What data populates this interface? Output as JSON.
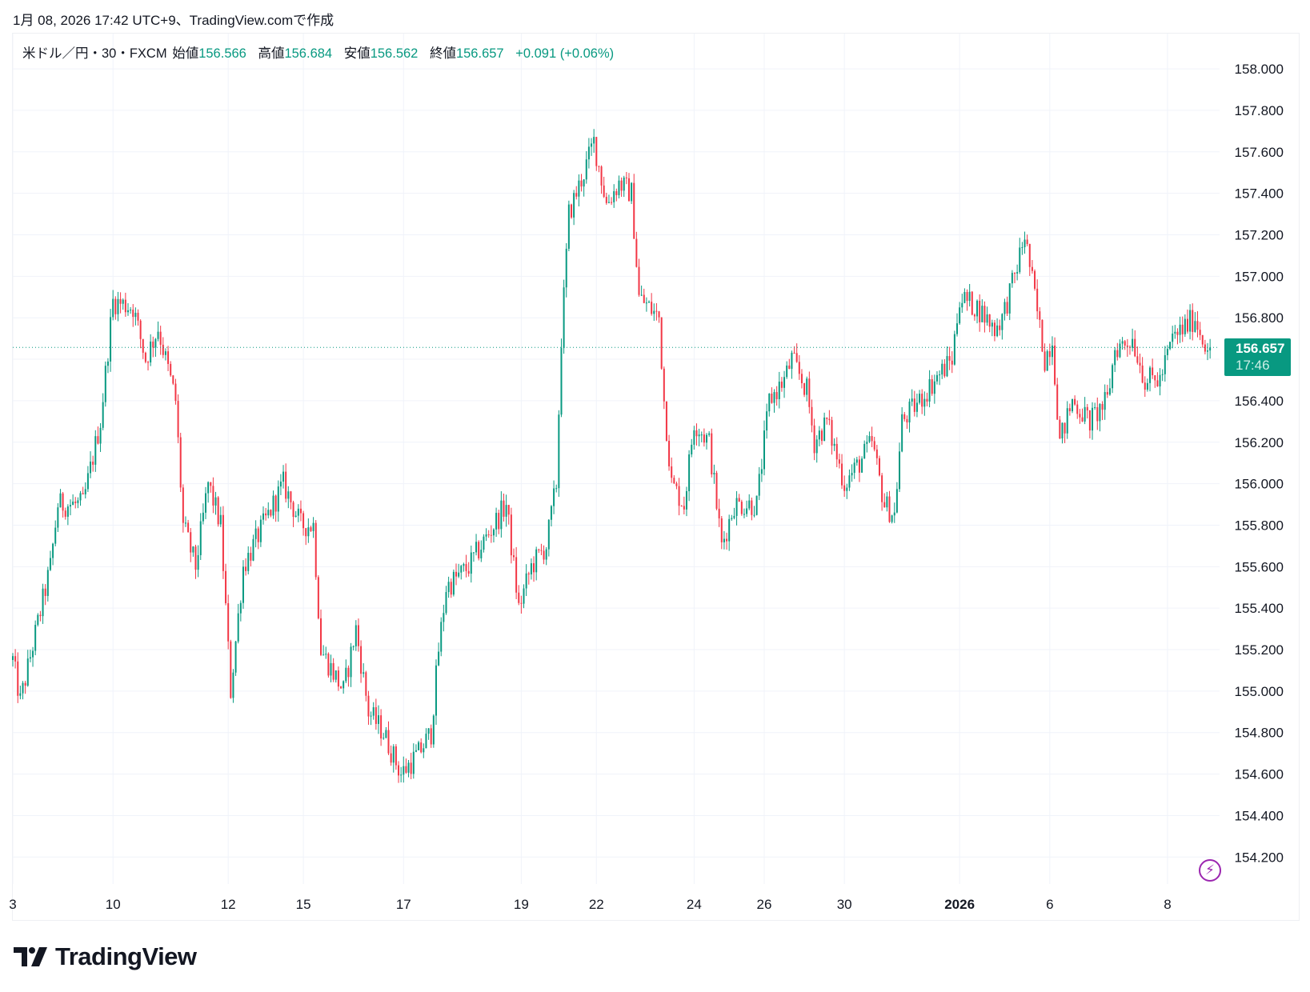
{
  "caption": "1月 08, 2026 17:42 UTC+9、TradingView.comで作成",
  "legend": {
    "symbol": "米ドル／円・30・FXCM",
    "open_label": "始値",
    "open": "156.566",
    "high_label": "高値",
    "high": "156.684",
    "low_label": "安値",
    "low": "156.562",
    "close_label": "終値",
    "close": "156.657",
    "change": "+0.091 (+0.06%)"
  },
  "last_price": {
    "price": "156.657",
    "countdown": "17:46"
  },
  "logo_text": "TradingView",
  "colors": {
    "up": "#089981",
    "down": "#f23645",
    "grid": "#f0f3fa",
    "accent": "#9c27b0"
  },
  "chart_data": {
    "type": "candlestick",
    "title": "米ドル／円・30・FXCM",
    "ylim": [
      154.07,
      158.17
    ],
    "y_ticks": [
      "158.000",
      "157.800",
      "157.600",
      "157.400",
      "157.200",
      "157.000",
      "156.800",
      "156.600",
      "156.400",
      "156.200",
      "156.000",
      "155.800",
      "155.600",
      "155.400",
      "155.200",
      "155.000",
      "154.800",
      "154.600",
      "154.400",
      "154.200"
    ],
    "x_ticks": [
      {
        "label": "3",
        "bar": 0
      },
      {
        "label": "10",
        "bar": 40
      },
      {
        "label": "12",
        "bar": 86
      },
      {
        "label": "15",
        "bar": 116
      },
      {
        "label": "17",
        "bar": 156
      },
      {
        "label": "19",
        "bar": 203
      },
      {
        "label": "22",
        "bar": 233
      },
      {
        "label": "24",
        "bar": 272
      },
      {
        "label": "26",
        "bar": 300
      },
      {
        "label": "30",
        "bar": 332
      },
      {
        "label": "2026",
        "bar": 378,
        "bold": true
      },
      {
        "label": "6",
        "bar": 414
      },
      {
        "label": "8",
        "bar": 461
      }
    ],
    "bar_count": 479,
    "last_close": 156.657,
    "close_path": [
      [
        0,
        155.15
      ],
      [
        3,
        154.95
      ],
      [
        15,
        155.6
      ],
      [
        18,
        155.9
      ],
      [
        28,
        155.9
      ],
      [
        35,
        156.3
      ],
      [
        40,
        156.88
      ],
      [
        48,
        156.85
      ],
      [
        53,
        156.6
      ],
      [
        58,
        156.75
      ],
      [
        65,
        156.4
      ],
      [
        68,
        155.8
      ],
      [
        73,
        155.6
      ],
      [
        78,
        156.0
      ],
      [
        83,
        155.8
      ],
      [
        87,
        155.0
      ],
      [
        92,
        155.6
      ],
      [
        98,
        155.75
      ],
      [
        108,
        156.0
      ],
      [
        115,
        155.8
      ],
      [
        120,
        155.8
      ],
      [
        123,
        155.2
      ],
      [
        132,
        155.0
      ],
      [
        137,
        155.3
      ],
      [
        142,
        154.9
      ],
      [
        148,
        154.8
      ],
      [
        155,
        154.6
      ],
      [
        162,
        154.7
      ],
      [
        167,
        154.8
      ],
      [
        170,
        155.2
      ],
      [
        173,
        155.5
      ],
      [
        182,
        155.6
      ],
      [
        192,
        155.8
      ],
      [
        197,
        155.9
      ],
      [
        202,
        155.4
      ],
      [
        207,
        155.6
      ],
      [
        213,
        155.7
      ],
      [
        217,
        156.0
      ],
      [
        219,
        156.7
      ],
      [
        222,
        157.3
      ],
      [
        228,
        157.5
      ],
      [
        232,
        157.65
      ],
      [
        237,
        157.35
      ],
      [
        242,
        157.45
      ],
      [
        247,
        157.4
      ],
      [
        250,
        156.9
      ],
      [
        258,
        156.8
      ],
      [
        260,
        156.4
      ],
      [
        263,
        156.0
      ],
      [
        268,
        155.9
      ],
      [
        272,
        156.3
      ],
      [
        278,
        156.2
      ],
      [
        283,
        155.7
      ],
      [
        288,
        155.9
      ],
      [
        297,
        155.9
      ],
      [
        302,
        156.4
      ],
      [
        308,
        156.5
      ],
      [
        311,
        156.6
      ],
      [
        317,
        156.45
      ],
      [
        320,
        156.2
      ],
      [
        325,
        156.3
      ],
      [
        332,
        156.0
      ],
      [
        338,
        156.1
      ],
      [
        343,
        156.2
      ],
      [
        348,
        155.9
      ],
      [
        352,
        155.85
      ],
      [
        355,
        156.3
      ],
      [
        362,
        156.4
      ],
      [
        368,
        156.5
      ],
      [
        375,
        156.6
      ],
      [
        378,
        156.9
      ],
      [
        385,
        156.85
      ],
      [
        392,
        156.75
      ],
      [
        395,
        156.8
      ],
      [
        400,
        157.0
      ],
      [
        404,
        157.2
      ],
      [
        408,
        156.9
      ],
      [
        412,
        156.6
      ],
      [
        415,
        156.7
      ],
      [
        418,
        156.2
      ],
      [
        423,
        156.4
      ],
      [
        430,
        156.3
      ],
      [
        437,
        156.4
      ],
      [
        440,
        156.65
      ],
      [
        447,
        156.7
      ],
      [
        452,
        156.5
      ],
      [
        458,
        156.5
      ],
      [
        463,
        156.7
      ],
      [
        472,
        156.8
      ],
      [
        475,
        156.7
      ],
      [
        478,
        156.657
      ]
    ]
  }
}
